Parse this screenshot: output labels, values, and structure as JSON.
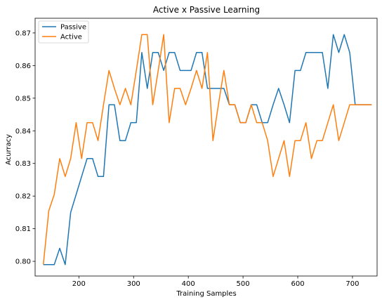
{
  "chart_data": {
    "type": "line",
    "title": "Active x Passive Learning",
    "xlabel": "Training Samples",
    "ylabel": "Acurracy",
    "xlim": [
      120,
      745
    ],
    "ylim": [
      0.7955,
      0.8745
    ],
    "xticks": [
      200,
      300,
      400,
      500,
      600,
      700
    ],
    "yticks": [
      0.8,
      0.81,
      0.82,
      0.83,
      0.84,
      0.85,
      0.86,
      0.87
    ],
    "ytick_labels": [
      "0.80",
      "0.81",
      "0.82",
      "0.83",
      "0.84",
      "0.85",
      "0.86",
      "0.87"
    ],
    "grid": false,
    "legend_position": "upper-left",
    "colors": {
      "Passive": "#1f77b4",
      "Active": "#ff7f0e"
    },
    "x": [
      135,
      145,
      155,
      165,
      175,
      185,
      195,
      205,
      215,
      225,
      235,
      245,
      255,
      265,
      275,
      285,
      295,
      305,
      315,
      325,
      335,
      345,
      355,
      365,
      375,
      385,
      395,
      405,
      415,
      425,
      435,
      445,
      455,
      465,
      475,
      485,
      495,
      505,
      515,
      525,
      535,
      545,
      555,
      565,
      575,
      585,
      595,
      605,
      615,
      625,
      635,
      645,
      655,
      665,
      675,
      685,
      695,
      705,
      715,
      725,
      735
    ],
    "series": [
      {
        "name": "Passive",
        "values": [
          0.799,
          0.799,
          0.799,
          0.804,
          0.799,
          0.815,
          0.8205,
          0.826,
          0.8315,
          0.8315,
          0.826,
          0.826,
          0.848,
          0.848,
          0.837,
          0.837,
          0.8425,
          0.8425,
          0.864,
          0.853,
          0.864,
          0.864,
          0.8585,
          0.864,
          0.864,
          0.8585,
          0.8585,
          0.8585,
          0.864,
          0.864,
          0.853,
          0.853,
          0.853,
          0.853,
          0.848,
          0.848,
          0.8425,
          0.8425,
          0.848,
          0.848,
          0.8425,
          0.8425,
          0.848,
          0.853,
          0.848,
          0.8425,
          0.8585,
          0.8585,
          0.864,
          0.864,
          0.864,
          0.864,
          0.853,
          0.8695,
          0.864,
          0.8695,
          0.864,
          0.848,
          0.848,
          0.848,
          0.848
        ]
      },
      {
        "name": "Active",
        "values": [
          0.799,
          0.8155,
          0.8205,
          0.8315,
          0.826,
          0.8315,
          0.8425,
          0.8315,
          0.8425,
          0.8425,
          0.837,
          0.848,
          0.8585,
          0.853,
          0.848,
          0.853,
          0.848,
          0.8585,
          0.8695,
          0.8695,
          0.848,
          0.8585,
          0.8695,
          0.8425,
          0.853,
          0.853,
          0.848,
          0.853,
          0.8585,
          0.853,
          0.864,
          0.837,
          0.848,
          0.8585,
          0.848,
          0.848,
          0.8425,
          0.8425,
          0.848,
          0.8425,
          0.8425,
          0.837,
          0.826,
          0.8315,
          0.837,
          0.826,
          0.837,
          0.837,
          0.8425,
          0.8315,
          0.837,
          0.837,
          0.8425,
          0.848,
          0.837,
          0.8425,
          0.848,
          0.848,
          0.848,
          0.848,
          0.848
        ]
      }
    ]
  }
}
